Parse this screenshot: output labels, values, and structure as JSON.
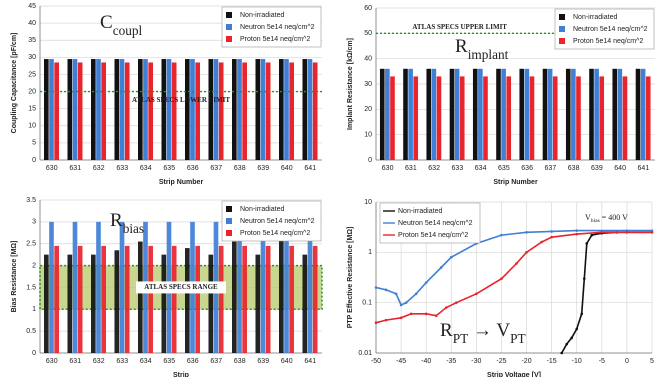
{
  "chart_data": [
    {
      "type": "bar",
      "y_label": "Coupling Capacitance [pF/cm]",
      "x_label": "Strip Number",
      "annotation": [
        {
          "text": "C",
          "sub": "coupl"
        }
      ],
      "categories": [
        "630",
        "631",
        "632",
        "633",
        "634",
        "635",
        "636",
        "637",
        "638",
        "639",
        "640",
        "641"
      ],
      "series": [
        {
          "name": "Non-irradiated",
          "color": "#111111",
          "values": [
            29.5,
            29.5,
            29.5,
            29.5,
            29.5,
            29.5,
            29.5,
            29.5,
            29.5,
            29.5,
            29.5,
            29.5
          ]
        },
        {
          "name": "Neutron 5e14 neq/cm^2",
          "color": "#3f7fd6",
          "values": [
            29.5,
            29.5,
            29.5,
            29.5,
            29.5,
            29.5,
            29.5,
            29.5,
            29.5,
            29.5,
            29.5,
            29.5
          ]
        },
        {
          "name": "Proton 5e14 neq/cm^2",
          "color": "#e8242c",
          "values": [
            28.5,
            28.5,
            28.5,
            28.5,
            28.5,
            28.5,
            28.5,
            28.5,
            28.5,
            28.5,
            28.5,
            28.5
          ]
        }
      ],
      "ylim": [
        0,
        45
      ],
      "yticks": [
        0,
        5,
        10,
        15,
        20,
        25,
        30,
        35,
        40,
        45
      ],
      "grid": true,
      "reference_line": {
        "value": 20,
        "label": "ATLAS SPECS LOWER LIMIT",
        "color": "#1f9a2a"
      }
    },
    {
      "type": "bar",
      "y_label": "Implant Resistance [kΩ/cm]",
      "x_label": "Strip Number",
      "annotation": [
        {
          "text": "R",
          "sub": "implant"
        }
      ],
      "categories": [
        "630",
        "631",
        "632",
        "633",
        "634",
        "635",
        "636",
        "637",
        "638",
        "639",
        "640",
        "641"
      ],
      "series": [
        {
          "name": "Non-irradiated",
          "color": "#111111",
          "values": [
            36,
            36,
            36,
            36,
            36,
            36,
            36,
            36,
            36,
            36,
            36,
            36
          ]
        },
        {
          "name": "Neutron 5e14 neq/cm^2",
          "color": "#3f7fd6",
          "values": [
            36,
            36,
            36,
            36,
            36,
            36,
            36,
            36,
            36,
            36,
            36,
            36
          ]
        },
        {
          "name": "Proton 5e14 neq/cm^2",
          "color": "#e8242c",
          "values": [
            33,
            33,
            33,
            33,
            33,
            33,
            33,
            33,
            33,
            33,
            33,
            33
          ]
        }
      ],
      "ylim": [
        0,
        60
      ],
      "yticks": [
        0,
        10,
        20,
        30,
        40,
        50,
        60
      ],
      "grid": true,
      "reference_line": {
        "value": 50,
        "label": "ATLAS SPECS UPPER LIMIT",
        "color": "#1f9a2a"
      }
    },
    {
      "type": "bar",
      "y_label": "Bias Resistance [MΩ]",
      "x_label": "Strip",
      "annotation": [
        {
          "text": "R",
          "sub": "bias"
        }
      ],
      "categories": [
        "630",
        "631",
        "632",
        "633",
        "634",
        "635",
        "636",
        "637",
        "638",
        "639",
        "640",
        "641"
      ],
      "series": [
        {
          "name": "Non-irradiated",
          "color": "#111111",
          "values": [
            2.25,
            2.25,
            2.25,
            2.35,
            2.55,
            2.25,
            2.4,
            2.25,
            2.55,
            2.25,
            2.6,
            2.25
          ]
        },
        {
          "name": "Neutron 5e14 neq/cm^2",
          "color": "#3f7fd6",
          "values": [
            3,
            3,
            3,
            3,
            3,
            3,
            3,
            3,
            3,
            3,
            3,
            3
          ]
        },
        {
          "name": "Proton 5e14 neq/cm^2",
          "color": "#e8242c",
          "values": [
            2.45,
            2.45,
            2.45,
            2.45,
            2.45,
            2.45,
            2.45,
            2.45,
            2.45,
            2.45,
            2.45,
            2.45
          ]
        }
      ],
      "ylim": [
        0,
        3.5
      ],
      "yticks": [
        0,
        0.5,
        1,
        1.5,
        2,
        2.5,
        3,
        3.5
      ],
      "grid": true,
      "band": {
        "range": [
          1,
          2
        ],
        "label": "ATLAS SPECS RANGE",
        "color": "#1f9a2a"
      }
    },
    {
      "type": "line",
      "log_y": true,
      "y_label": "PTP Effective Resistance [MΩ]",
      "x_label": "Strip Voltage [V]",
      "annotation": [
        {
          "text": "R",
          "sub": "PT"
        },
        {
          "text": " → V",
          "sub": "PT"
        }
      ],
      "note": [
        {
          "text": "V",
          "sub": "bias"
        },
        {
          "text": " = 400 V"
        }
      ],
      "series": [
        {
          "name": "Non-irradiated",
          "color": "#111111",
          "x": [
            -13,
            -12,
            -11,
            -10,
            -9,
            -8.5,
            -8,
            -7,
            -5,
            -2,
            0,
            5
          ],
          "values": [
            0.01,
            0.015,
            0.02,
            0.03,
            0.06,
            0.3,
            1.5,
            2.2,
            2.4,
            2.5,
            2.5,
            2.5
          ]
        },
        {
          "name": "Neutron 5e14 neq/cm^2",
          "color": "#3f7fd6",
          "x": [
            -50,
            -48,
            -46,
            -45,
            -44,
            -42,
            -40,
            -37,
            -35,
            -30,
            -25,
            -20,
            -15,
            -10,
            0,
            5
          ],
          "values": [
            0.2,
            0.18,
            0.15,
            0.09,
            0.1,
            0.15,
            0.25,
            0.5,
            0.8,
            1.5,
            2.2,
            2.5,
            2.6,
            2.7,
            2.7,
            2.7
          ]
        },
        {
          "name": "Proton 5e14 neq/cm^2",
          "color": "#e8242c",
          "x": [
            -50,
            -48,
            -45,
            -43,
            -40,
            -38,
            -36,
            -34,
            -30,
            -25,
            -22,
            -20,
            -17,
            -15,
            -10,
            -5,
            0,
            5
          ],
          "values": [
            0.04,
            0.045,
            0.05,
            0.06,
            0.06,
            0.055,
            0.08,
            0.1,
            0.15,
            0.3,
            0.6,
            1,
            1.6,
            2,
            2.3,
            2.5,
            2.5,
            2.5
          ]
        }
      ],
      "xlim": [
        -50,
        5
      ],
      "xticks": [
        -50,
        -45,
        -40,
        -35,
        -30,
        -25,
        -20,
        -15,
        -10,
        -5,
        0,
        5
      ],
      "ylim": [
        0.01,
        10
      ],
      "yticks": [
        0.01,
        0.1,
        1,
        10
      ],
      "grid": true
    }
  ]
}
